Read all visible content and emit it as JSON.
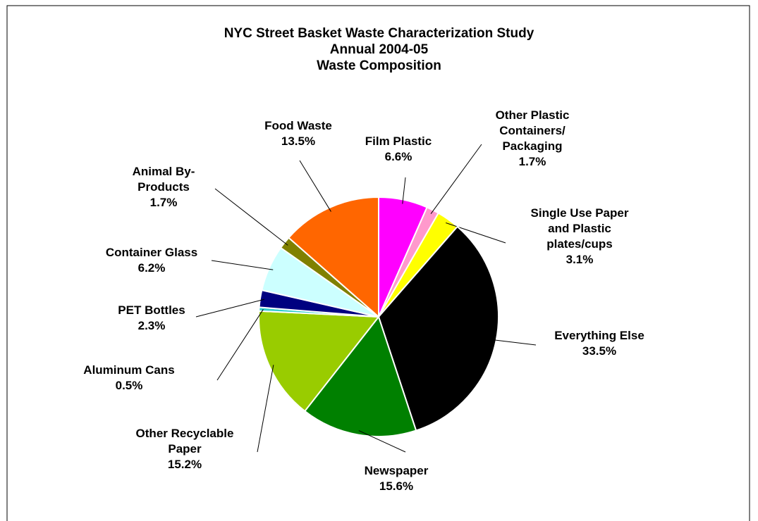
{
  "chart_data": {
    "type": "pie",
    "title": "NYC Street Basket Waste Characterization Study\nAnnual 2004-05\nWaste Composition",
    "categories": [
      "Film Plastic",
      "Other Plastic\nContainers/\nPackaging",
      "Single Use Paper\nand Plastic\nplates/cups",
      "Everything Else",
      "Newspaper",
      "Other Recyclable\nPaper",
      "Aluminum Cans",
      "PET Bottles",
      "Container Glass",
      "Animal By-\nProducts",
      "Food Waste"
    ],
    "values": [
      6.6,
      1.7,
      3.1,
      33.5,
      15.6,
      15.2,
      0.5,
      2.3,
      6.2,
      1.7,
      13.5
    ],
    "value_labels": [
      "6.6%",
      "1.7%",
      "3.1%",
      "33.5%",
      "15.6%",
      "15.2%",
      "0.5%",
      "2.3%",
      "6.2%",
      "1.7%",
      "13.5%"
    ],
    "colors": [
      "#ff00ff",
      "#ff99cc",
      "#ffff00",
      "#000000",
      "#008000",
      "#99cc00",
      "#33cccc",
      "#000080",
      "#ccffff",
      "#808000",
      "#ff6600"
    ]
  }
}
